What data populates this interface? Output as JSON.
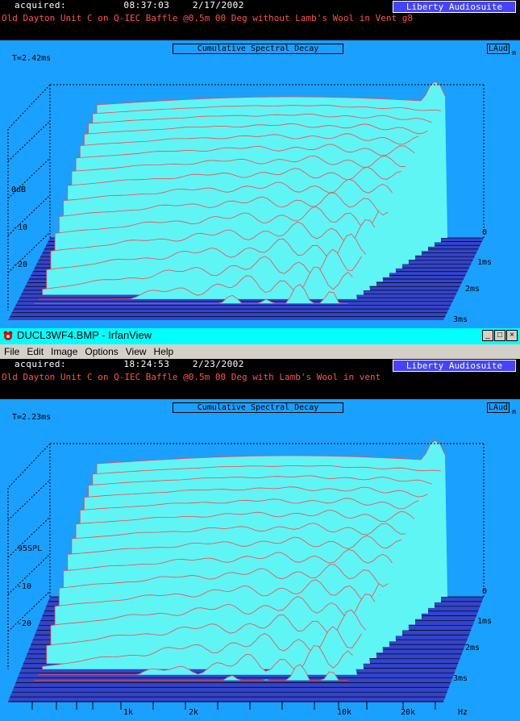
{
  "panel1": {
    "acquired_label": "acquired:",
    "time": "08:37:03",
    "date": "2/17/2002",
    "brand": "Liberty Audiosuite",
    "title": "Old Dayton Unit C on Q-IEC Baffle @0.5m 00 Deg without Lamb's Wool in Vent g8",
    "chart_title": "Cumulative Spectral Decay",
    "decay_time": "T=2.42ms",
    "logo": "LAud",
    "logo_sub": "m",
    "level_labels": [
      "0dB",
      "-10",
      "-20"
    ],
    "time_labels": [
      "0",
      "1ms",
      "2ms",
      "3ms"
    ]
  },
  "window": {
    "title": "DUCL3WF4.BMP - IrfanView",
    "buttons": [
      "_",
      "□",
      "×"
    ],
    "menu": [
      "File",
      "Edit",
      "Image",
      "Options",
      "View",
      "Help"
    ]
  },
  "panel2": {
    "acquired_label": "acquired:",
    "time": "18:24:53",
    "date": "2/23/2002",
    "brand": "Liberty Audiosuite",
    "title": "Old Dayton Unit C on Q-IEC Baffle @0.5m 00 Deg with Lamb's Wool in vent",
    "chart_title": "Cumulative Spectral Decay",
    "decay_time": "T=2.23ms",
    "logo": "LAud",
    "logo_sub": "m",
    "level_labels": [
      "95SPL",
      "-10",
      "-20"
    ],
    "time_labels": [
      "0",
      "1ms",
      "2ms",
      "3ms"
    ],
    "freq_labels": [
      "1k",
      "2k",
      "10k",
      "20k",
      "Hz"
    ]
  },
  "colors": {
    "plot_bg": "#1aa0ff",
    "floor": "#3344cc",
    "surface": "#5ff5f5",
    "curve": "#ff4444",
    "brand_bg": "#4444ff",
    "title_text": "#ff5050"
  }
}
